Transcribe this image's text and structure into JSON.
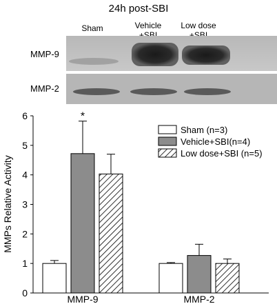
{
  "blot": {
    "title": "24h post-SBI",
    "lanes": [
      "Sham",
      "Vehicle\n+SBI",
      "Low dose\n+SBI"
    ],
    "rows": [
      "MMP-9",
      "MMP-2"
    ]
  },
  "chart_data": {
    "type": "bar",
    "categories": [
      "MMP-9",
      "MMP-2"
    ],
    "ylabel": "MMPs Relative Activity",
    "xlabel": "",
    "ylim": [
      0,
      6
    ],
    "yticks": [
      0,
      1,
      2,
      3,
      4,
      5,
      6
    ],
    "grid": false,
    "legend_position": "top-right",
    "series": [
      {
        "name": "Sham (n=3)",
        "values": [
          1.0,
          1.0
        ],
        "errors": [
          0.1,
          0.03
        ],
        "fill": "#ffffff",
        "pattern": "none"
      },
      {
        "name": "Vehicle+SBI(n=4)",
        "values": [
          4.72,
          1.27
        ],
        "errors": [
          1.1,
          0.38
        ],
        "fill": "#8c8c8c",
        "pattern": "none"
      },
      {
        "name": "Low dose+SBI (n=5)",
        "values": [
          4.03,
          1.0
        ],
        "errors": [
          0.67,
          0.15
        ],
        "fill": "#ffffff",
        "pattern": "hatch"
      }
    ],
    "annotations": [
      {
        "text": "*",
        "category": "MMP-9",
        "series": 1
      }
    ]
  }
}
